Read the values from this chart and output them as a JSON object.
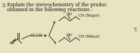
{
  "bg_color": "#e8e3c0",
  "question_number": "3.",
  "question_text": "Explain the stereochemistry of the produc",
  "question_text2": "obtained in the following reactions :",
  "reagent": "H⁺CN",
  "major_label": "CN (Major)",
  "minor_label": "CN (Minor)",
  "ho_label": "HO",
  "right_number": "7.",
  "font_size_q": 5.0,
  "font_size_label": 3.8,
  "font_size_struct": 3.8,
  "lw": 0.65
}
